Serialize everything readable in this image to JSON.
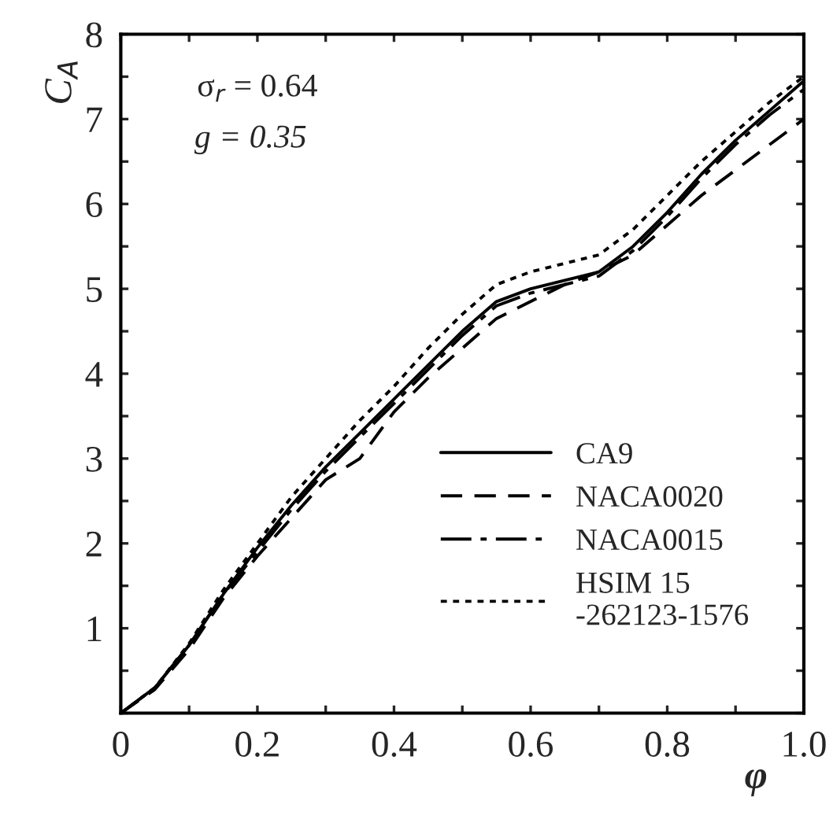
{
  "chart_data": {
    "type": "line",
    "xlabel": "φ",
    "ylabel": "C$_{A}$",
    "annotations": [
      "σ$_{r}$ = 0.64",
      "g = 0.35"
    ],
    "x": [
      0,
      0.05,
      0.1,
      0.15,
      0.2,
      0.25,
      0.3,
      0.35,
      0.4,
      0.45,
      0.5,
      0.55,
      0.6,
      0.65,
      0.7,
      0.75,
      0.8,
      0.85,
      0.9,
      0.95,
      1.0
    ],
    "series": [
      {
        "name": "CA9",
        "color": "#000000",
        "line_style": "solid",
        "values": [
          0,
          0.3,
          0.8,
          1.4,
          1.95,
          2.45,
          2.9,
          3.3,
          3.7,
          4.1,
          4.5,
          4.85,
          5.0,
          5.1,
          5.2,
          5.5,
          5.9,
          6.35,
          6.75,
          7.1,
          7.45
        ]
      },
      {
        "name": "NACA0020",
        "color": "#000000",
        "line_style": "dashed",
        "values": [
          0,
          0.28,
          0.75,
          1.35,
          1.85,
          2.3,
          2.75,
          3.0,
          3.55,
          3.95,
          4.3,
          4.65,
          4.85,
          5.05,
          5.2,
          5.4,
          5.75,
          6.1,
          6.4,
          6.7,
          7.0
        ]
      },
      {
        "name": "NACA0015",
        "color": "#000000",
        "line_style": "dashdot",
        "values": [
          0,
          0.3,
          0.8,
          1.4,
          1.9,
          2.4,
          2.85,
          3.25,
          3.65,
          4.05,
          4.45,
          4.8,
          4.95,
          5.05,
          5.15,
          5.45,
          5.85,
          6.3,
          6.7,
          7.05,
          7.35
        ]
      },
      {
        "name": "HSIM 15\n-262123-1576",
        "color": "#000000",
        "line_style": "dotted",
        "values": [
          0,
          0.3,
          0.82,
          1.45,
          2.0,
          2.55,
          3.0,
          3.45,
          3.85,
          4.3,
          4.7,
          5.05,
          5.2,
          5.3,
          5.4,
          5.7,
          6.1,
          6.5,
          6.85,
          7.2,
          7.5
        ]
      }
    ],
    "xlim": [
      0,
      1.0
    ],
    "ylim": [
      0,
      8
    ],
    "xticks": [
      0,
      {
        "value": 0.1,
        "label": null
      },
      0.2,
      {
        "value": 0.3,
        "label": null
      },
      0.4,
      {
        "value": 0.5,
        "label": null
      },
      0.6,
      {
        "value": 0.7,
        "label": null
      },
      0.8,
      {
        "value": 0.9,
        "label": null
      },
      {
        "value": 1.0,
        "label": "1.0"
      }
    ],
    "yticks": [
      {
        "value": 0,
        "label": null
      },
      {
        "value": 0.5,
        "label": null
      },
      1,
      {
        "value": 1.5,
        "label": null
      },
      2,
      {
        "value": 2.5,
        "label": null
      },
      3,
      {
        "value": 3.5,
        "label": null
      },
      4,
      {
        "value": 4.5,
        "label": null
      },
      5,
      {
        "value": 5.5,
        "label": null
      },
      6,
      {
        "value": 6.5,
        "label": null
      },
      7,
      {
        "value": 7.5,
        "label": null
      },
      8
    ],
    "legend": "bottom right",
    "grid": false
  }
}
